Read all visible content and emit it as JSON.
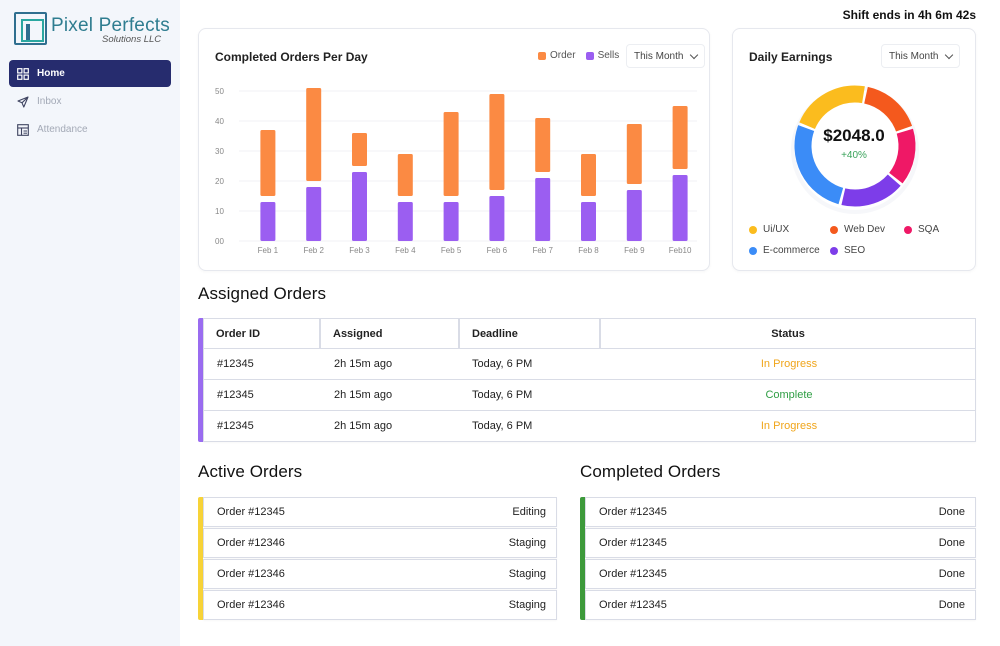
{
  "header": {
    "shift_text": "Shift ends in 4h 6m 42s"
  },
  "sidebar": {
    "logo_title": "Pixel Perfects",
    "logo_subtitle": "Solutions LLC",
    "items": [
      {
        "label": "Home",
        "icon": "grid-icon",
        "active": true
      },
      {
        "label": "Inbox",
        "icon": "send-icon",
        "active": false
      },
      {
        "label": "Attendance",
        "icon": "layout-icon",
        "active": false
      }
    ]
  },
  "orders_chart": {
    "title": "Completed Orders Per Day",
    "dropdown": "This Month",
    "colors": {
      "order": "#fb8a43",
      "sells": "#9b5ef1"
    }
  },
  "chart_data": [
    {
      "type": "bar",
      "title": "Completed Orders Per Day",
      "categories": [
        "Feb 1",
        "Feb 2",
        "Feb 3",
        "Feb 4",
        "Feb 5",
        "Feb 6",
        "Feb 7",
        "Feb 8",
        "Feb 9",
        "Feb10"
      ],
      "y_ticks": [
        "50",
        "40",
        "30",
        "20",
        "10",
        "00"
      ],
      "ylim": [
        0,
        50
      ],
      "legend_position": "top-right",
      "grid": true,
      "stacked_floating": true,
      "series": [
        {
          "name": "Sells",
          "color": "#9b5ef1",
          "low": [
            0,
            0,
            0,
            0,
            0,
            0,
            0,
            0,
            0,
            0
          ],
          "high": [
            13,
            18,
            23,
            13,
            13,
            15,
            21,
            13,
            17,
            22
          ]
        },
        {
          "name": "Order",
          "color": "#fb8a43",
          "low": [
            15,
            20,
            25,
            15,
            15,
            17,
            23,
            15,
            19,
            24
          ],
          "high": [
            37,
            51,
            36,
            29,
            43,
            49,
            41,
            29,
            39,
            45
          ]
        }
      ]
    },
    {
      "type": "pie",
      "title": "Daily Earnings",
      "center_value": "$2048.0",
      "center_change": "+40%",
      "slices": [
        {
          "label": "Ui/UX",
          "color": "#fbbc1e",
          "value": 22
        },
        {
          "label": "Web Dev",
          "color": "#f4591d",
          "value": 17
        },
        {
          "label": "SQA",
          "color": "#ef1866",
          "value": 16
        },
        {
          "label": "SEO",
          "color": "#7d3de9",
          "value": 18
        },
        {
          "label": "E-commerce",
          "color": "#3b8cf7",
          "value": 27
        }
      ]
    }
  ],
  "earnings": {
    "title": "Daily Earnings",
    "dropdown": "This Month",
    "value": "$2048.0",
    "change": "+40%",
    "legend": [
      {
        "label": "Ui/UX",
        "color": "#fbbc1e"
      },
      {
        "label": "Web Dev",
        "color": "#f4591d"
      },
      {
        "label": "SQA",
        "color": "#ef1866"
      },
      {
        "label": "E-commerce",
        "color": "#3b8cf7"
      },
      {
        "label": "SEO",
        "color": "#7d3de9"
      }
    ]
  },
  "assigned": {
    "title": "Assigned Orders",
    "headers": [
      "Order ID",
      "Assigned",
      "Deadline",
      "Status"
    ],
    "rows": [
      {
        "id": "#12345",
        "assigned": "2h 15m ago",
        "deadline": "Today, 6 PM",
        "status": "In Progress",
        "status_color": "#f0a51a"
      },
      {
        "id": "#12345",
        "assigned": "2h 15m ago",
        "deadline": "Today, 6 PM",
        "status": "Complete",
        "status_color": "#2f9e44"
      },
      {
        "id": "#12345",
        "assigned": "2h 15m ago",
        "deadline": "Today, 6 PM",
        "status": "In Progress",
        "status_color": "#f0a51a"
      }
    ]
  },
  "active": {
    "title": "Active Orders",
    "accent": "#f7d338",
    "items": [
      {
        "order": "Order #12345",
        "status": "Editing"
      },
      {
        "order": "Order #12346",
        "status": "Staging"
      },
      {
        "order": "Order #12346",
        "status": "Staging"
      },
      {
        "order": "Order #12346",
        "status": "Staging"
      }
    ]
  },
  "completed": {
    "title": "Completed Orders",
    "accent": "#3d9a3b",
    "items": [
      {
        "order": "Order #12345",
        "status": "Done"
      },
      {
        "order": "Order #12345",
        "status": "Done"
      },
      {
        "order": "Order #12345",
        "status": "Done"
      },
      {
        "order": "Order #12345",
        "status": "Done"
      }
    ]
  }
}
